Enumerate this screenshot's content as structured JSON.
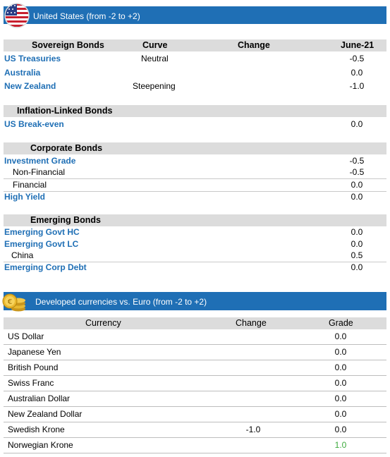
{
  "banner_us": {
    "title": "United States (from -2 to +2)"
  },
  "columns": {
    "c1": "Sovereign Bonds",
    "curve": "Curve",
    "change": "Change",
    "date": "June-21"
  },
  "sovereign": [
    {
      "name": "US Treasuries",
      "curve": "Neutral",
      "value": "-0.5"
    },
    {
      "name": "Australia",
      "curve": "",
      "value": "0.0"
    },
    {
      "name": "New Zealand",
      "curve": "Steepening",
      "value": "-1.0"
    }
  ],
  "inflation": {
    "header": "Inflation-Linked Bonds",
    "rows": [
      {
        "name": "US Break-even",
        "value": "0.0"
      }
    ]
  },
  "corporate": {
    "header": "Corporate Bonds",
    "rows": [
      {
        "name": "Investment Grade",
        "value": "-0.5"
      },
      {
        "name": "Non-Financial",
        "value": "-0.5"
      },
      {
        "name": "Financial",
        "value": "0.0"
      },
      {
        "name": "High Yield",
        "value": "0.0"
      }
    ]
  },
  "emerging": {
    "header": "Emerging Bonds",
    "rows": [
      {
        "name": "Emerging Govt HC",
        "value": "0.0"
      },
      {
        "name": "Emerging Govt LC",
        "value": "0.0"
      },
      {
        "name": "China",
        "value": "0.5"
      },
      {
        "name": "Emerging Corp Debt",
        "value": "0.0"
      }
    ]
  },
  "banner_fx": {
    "title": "Developed currencies vs. Euro (from -2 to +2)"
  },
  "fx_columns": {
    "currency": "Currency",
    "change": "Change",
    "grade": "Grade"
  },
  "fx": [
    {
      "name": "US Dollar",
      "change": "",
      "grade": "0.0"
    },
    {
      "name": "Japanese Yen",
      "change": "",
      "grade": "0.0"
    },
    {
      "name": "British Pound",
      "change": "",
      "grade": "0.0"
    },
    {
      "name": "Swiss Franc",
      "change": "",
      "grade": "0.0"
    },
    {
      "name": "Australian Dollar",
      "change": "",
      "grade": "0.0"
    },
    {
      "name": "New Zealand Dollar",
      "change": "",
      "grade": "0.0"
    },
    {
      "name": "Swedish Krone",
      "change": "-1.0",
      "grade": "0.0"
    },
    {
      "name": "Norwegian Krone",
      "change": "",
      "grade": "1.0"
    }
  ],
  "colors": {
    "banner": "#1f6fb5",
    "label_blue": "#1f6fb5",
    "positive": "#3caa3c",
    "header_bg": "#dcdcdc"
  }
}
